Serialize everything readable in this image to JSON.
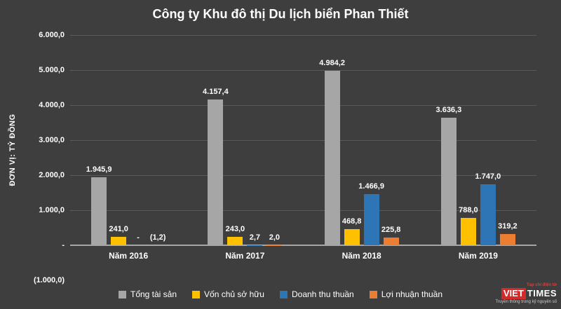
{
  "title": "Công ty Khu đô thị Du lịch biển Phan Thiết",
  "ylabel": "ĐƠN VỊ: TỶ ĐỒNG",
  "chart_data": {
    "type": "bar",
    "title": "Công ty Khu đô thị Du lịch biển Phan Thiết",
    "xlabel": "",
    "ylabel": "ĐƠN VỊ: TỶ ĐỒNG",
    "ylim": [
      -1000,
      6000
    ],
    "grid": true,
    "legend_position": "bottom",
    "categories": [
      "Năm 2016",
      "Năm 2017",
      "Năm 2018",
      "Năm 2019"
    ],
    "series": [
      {
        "name": "Tổng tài sản",
        "color": "#a6a6a6",
        "values": [
          1945.9,
          4157.4,
          4984.2,
          3636.3
        ],
        "labels": [
          "1.945,9",
          "4.157,4",
          "4.984,2",
          "3.636,3"
        ]
      },
      {
        "name": "Vốn chủ sở hữu",
        "color": "#ffc000",
        "values": [
          241.0,
          243.0,
          468.8,
          788.0
        ],
        "labels": [
          "241,0",
          "243,0",
          "468,8",
          "788,0"
        ]
      },
      {
        "name": "Doanh thu thuần",
        "color": "#2e75b6",
        "values": [
          0,
          2.7,
          1466.9,
          1747.0
        ],
        "labels": [
          "-",
          "2,7",
          "1.466,9",
          "1.747,0"
        ]
      },
      {
        "name": "Lợi nhuận thuần",
        "color": "#ed7d31",
        "values": [
          -1.2,
          2.0,
          225.8,
          319.2
        ],
        "labels": [
          "(1,2)",
          "2,0",
          "225,8",
          "319,2"
        ]
      }
    ],
    "yticks": [
      {
        "label": "6.000,0",
        "value": 6000
      },
      {
        "label": "5.000,0",
        "value": 5000
      },
      {
        "label": "4.000,0",
        "value": 4000
      },
      {
        "label": "3.000,0",
        "value": 3000
      },
      {
        "label": "2.000,0",
        "value": 2000
      },
      {
        "label": "1.000,0",
        "value": 1000
      },
      {
        "label": "-",
        "value": 0
      },
      {
        "label": "(1.000,0)",
        "value": -1000
      }
    ]
  },
  "logo": {
    "tagline_top": "Tạp chí điện tử",
    "box_text": "VIET",
    "name_text": "TIMES",
    "tagline_bottom": "Truyền thông trong kỷ nguyên số",
    "brand_color": "#d42a2a"
  }
}
